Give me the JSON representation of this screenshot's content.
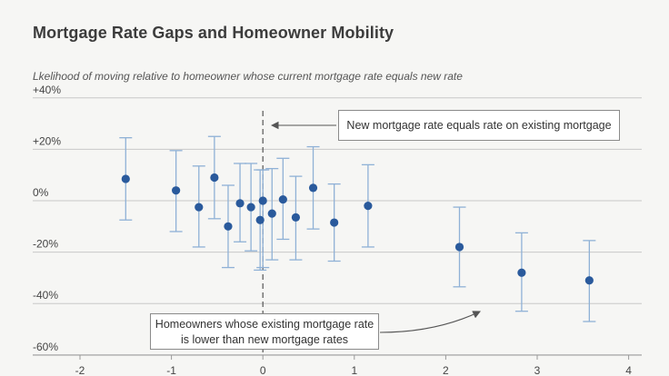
{
  "chart_data": {
    "type": "scatter",
    "title": "Mortgage Rate Gaps and Homeowner Mobility",
    "subtitle": "Lkelihood of moving relative to homeowner whose current mortgage rate equals new rate",
    "xlabel": "",
    "ylabel": "",
    "xlim": [
      -2.2,
      4.1
    ],
    "ylim": [
      -62,
      42
    ],
    "x_ticks": [
      "-2",
      "-1",
      "0",
      "1",
      "2",
      "3",
      "4"
    ],
    "y_ticks": [
      "+40%",
      "+20%",
      "0%",
      "-20%",
      "-40%",
      "-60%"
    ],
    "grid": "horizontal",
    "points": [
      {
        "x": -1.5,
        "y": 8.5,
        "lo": -7.5,
        "hi": 24.5
      },
      {
        "x": -0.95,
        "y": 4,
        "lo": -12,
        "hi": 19.5
      },
      {
        "x": -0.7,
        "y": -2.5,
        "lo": -18,
        "hi": 13.5
      },
      {
        "x": -0.53,
        "y": 9,
        "lo": -7,
        "hi": 25
      },
      {
        "x": -0.38,
        "y": -10,
        "lo": -26,
        "hi": 6
      },
      {
        "x": -0.25,
        "y": -1,
        "lo": -16,
        "hi": 14.5
      },
      {
        "x": -0.13,
        "y": -2.5,
        "lo": -19.5,
        "hi": 14.5
      },
      {
        "x": -0.03,
        "y": -7.5,
        "lo": -27,
        "hi": 12
      },
      {
        "x": 0.0,
        "y": 0,
        "lo": -26,
        "hi": 12
      },
      {
        "x": 0.1,
        "y": -5,
        "lo": -23,
        "hi": 12.5
      },
      {
        "x": 0.22,
        "y": 0.5,
        "lo": -15,
        "hi": 16.5
      },
      {
        "x": 0.36,
        "y": -6.5,
        "lo": -23,
        "hi": 9.5
      },
      {
        "x": 0.55,
        "y": 5,
        "lo": -11,
        "hi": 21
      },
      {
        "x": 0.78,
        "y": -8.5,
        "lo": -23.5,
        "hi": 6.5
      },
      {
        "x": 1.15,
        "y": -2,
        "lo": -18,
        "hi": 14
      },
      {
        "x": 2.15,
        "y": -18,
        "lo": -33.5,
        "hi": -2.5
      },
      {
        "x": 2.83,
        "y": -28,
        "lo": -43,
        "hi": -12.5
      },
      {
        "x": 3.57,
        "y": -31,
        "lo": -47,
        "hi": -15.5
      }
    ],
    "reference_line": {
      "x": 0,
      "style": "dashed"
    },
    "annotations": [
      {
        "id": "top",
        "text": "New mortgage rate equals rate on existing mortgage"
      },
      {
        "id": "bottom",
        "text": "Homeowners whose existing mortgage rate is lower than new mortgage rates"
      }
    ],
    "colors": {
      "point": "#2a5a9c",
      "errorbar": "#8fb1d6",
      "grid": "#c8c8c8",
      "axis": "#9a9a9a",
      "refline": "#555555",
      "tick_label": "#444444",
      "background": "#f6f6f4"
    }
  }
}
